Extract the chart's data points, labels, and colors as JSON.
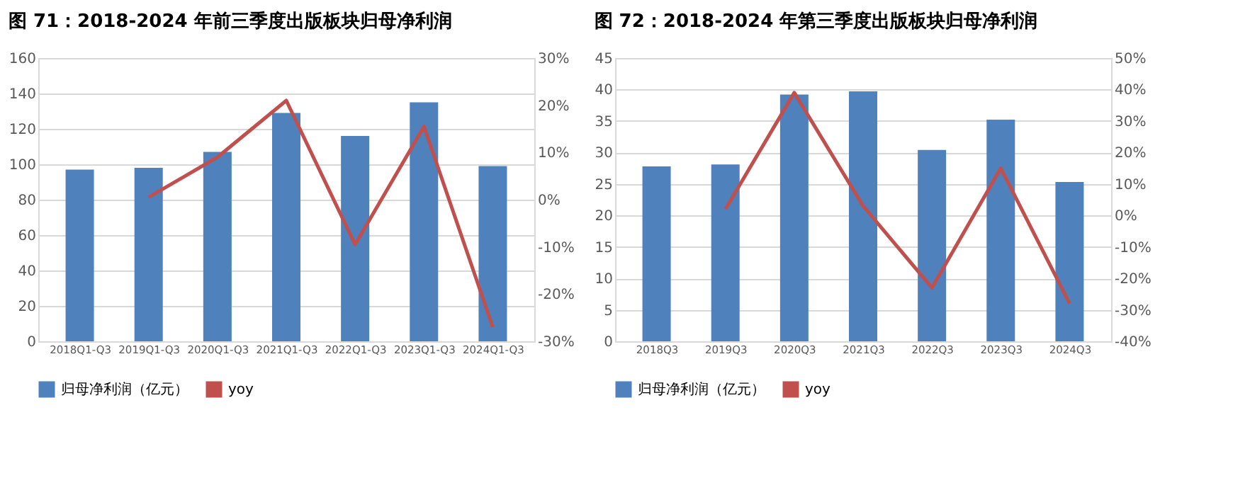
{
  "chart_data": [
    {
      "type": "bar",
      "title": "图 71：2018-2024 年前三季度出版板块归母净利润",
      "categories": [
        "2018Q1-Q3",
        "2019Q1-Q3",
        "2020Q1-Q3",
        "2021Q1-Q3",
        "2022Q1-Q3",
        "2023Q1-Q3",
        "2024Q1-Q3"
      ],
      "series": [
        {
          "name": "归母净利润（亿元）",
          "color": "#4f81bd",
          "values": [
            97,
            98,
            107,
            129,
            116,
            135,
            99
          ]
        },
        {
          "name": "yoy",
          "type": "line",
          "axis": "y2",
          "color": "#c0504d",
          "values": [
            null,
            0.5,
            9,
            21,
            -9.5,
            15.5,
            -27
          ]
        }
      ],
      "ylim": [
        0,
        160
      ],
      "yticks": [
        0,
        20,
        40,
        60,
        80,
        100,
        120,
        140,
        160
      ],
      "y2lim": [
        -30,
        30
      ],
      "y2ticks": [
        {
          "value": -30,
          "label": "-30%"
        },
        {
          "value": -20,
          "label": "-20%"
        },
        {
          "value": -10,
          "label": "-10%"
        },
        {
          "value": 0,
          "label": "0%"
        },
        {
          "value": 10,
          "label": "10%"
        },
        {
          "value": 20,
          "label": "20%"
        },
        {
          "value": 30,
          "label": "30%"
        }
      ],
      "grid": "y",
      "legend": "bottom",
      "marker": "none"
    },
    {
      "type": "bar",
      "title": "图 72：2018-2024 年第三季度出版板块归母净利润",
      "categories": [
        "2018Q3",
        "2019Q3",
        "2020Q3",
        "2021Q3",
        "2022Q3",
        "2023Q3",
        "2024Q3"
      ],
      "series": [
        {
          "name": "归母净利润（亿元）",
          "color": "#4f81bd",
          "values": [
            27.8,
            28.1,
            39.2,
            39.7,
            30.4,
            35.2,
            25.3
          ]
        },
        {
          "name": "yoy",
          "type": "line",
          "axis": "y2",
          "color": "#c0504d",
          "values": [
            null,
            2,
            39,
            3,
            -23,
            15,
            -28
          ]
        }
      ],
      "ylim": [
        0,
        45
      ],
      "yticks": [
        0,
        5,
        10,
        15,
        20,
        25,
        30,
        35,
        40,
        45
      ],
      "y2lim": [
        -40,
        50
      ],
      "y2ticks": [
        {
          "value": -40,
          "label": "-40%"
        },
        {
          "value": -30,
          "label": "-30%"
        },
        {
          "value": -20,
          "label": "-20%"
        },
        {
          "value": -10,
          "label": "-10%"
        },
        {
          "value": 0,
          "label": "0%"
        },
        {
          "value": 10,
          "label": "10%"
        },
        {
          "value": 20,
          "label": "20%"
        },
        {
          "value": 30,
          "label": "30%"
        },
        {
          "value": 40,
          "label": "40%"
        },
        {
          "value": 50,
          "label": "50%"
        }
      ],
      "grid": "y",
      "legend": "bottom",
      "marker": "none"
    }
  ]
}
